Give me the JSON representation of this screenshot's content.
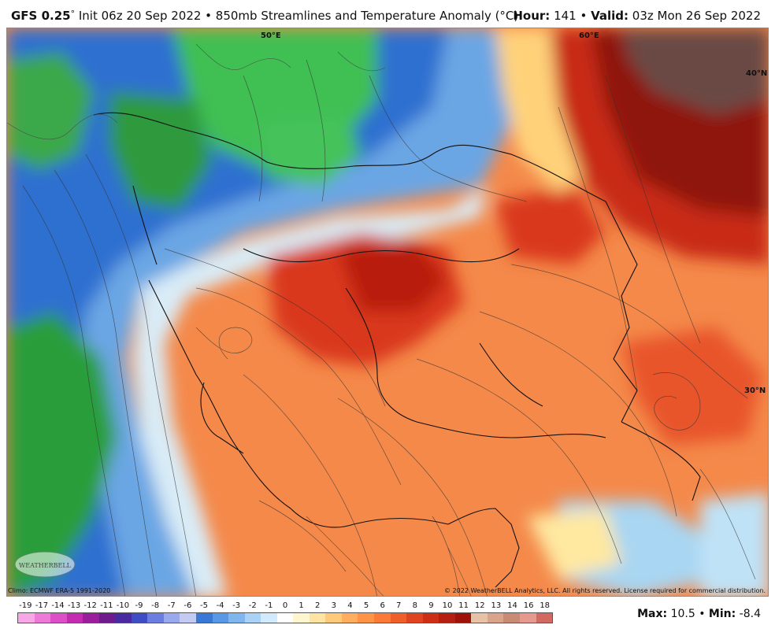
{
  "header": {
    "model": "GFS 0.25",
    "degree": "°",
    "init_text": " Init 06z 20 Sep 2022 • 850mb Streamlines and Temperature Anomaly (°C)",
    "hour_label": "Hour:",
    "hour_value": " 141 • ",
    "valid_label": "Valid:",
    "valid_value": " 03z Mon 26 Sep 2022"
  },
  "map": {
    "graticule_labels": {
      "lon_50e": "50°E",
      "lon_60e": "60°E",
      "lat_40n": "40°N",
      "lat_30n": "30°N"
    },
    "logo_text": "WEATHERBELL"
  },
  "footer": {
    "climo": "Climo: ECMWF ERA-5 1991-2020",
    "copyright": "© 2022 WeatherBELL Analytics, LLC. All rights reserved. License required for commercial distribution."
  },
  "legend": {
    "ticks": [
      "-19",
      "-17",
      "-14",
      "-13",
      "-12",
      "-11",
      "-10",
      "-9",
      "-8",
      "-7",
      "-6",
      "-5",
      "-4",
      "-3",
      "-2",
      "-1",
      "0",
      "1",
      "2",
      "3",
      "4",
      "5",
      "6",
      "7",
      "8",
      "9",
      "10",
      "11",
      "12",
      "13",
      "14",
      "16",
      "18"
    ],
    "colors": [
      "#f7a6e6",
      "#ee7ad8",
      "#dc4fc6",
      "#c52bb0",
      "#9b1f9d",
      "#6f1b8e",
      "#4a2aa0",
      "#3e4dc4",
      "#6b7de0",
      "#9aa8ee",
      "#c3cbf5",
      "#3a78d6",
      "#5898e6",
      "#80b6f0",
      "#a9d2f6",
      "#d2eafb",
      "#ffffff",
      "#fff6cf",
      "#ffe3a0",
      "#ffc97a",
      "#ffad5e",
      "#ff9447",
      "#fb7a37",
      "#f05e2a",
      "#e0431f",
      "#cc2e16",
      "#b51f10",
      "#9d1209",
      "#e8c2a6",
      "#d9a48a",
      "#c98b74",
      "#e69a8e",
      "#d26a62"
    ]
  },
  "maxmin": {
    "max_label": "Max:",
    "max_value": " 10.5 • ",
    "min_label": "Min:",
    "min_value": " -8.4"
  }
}
